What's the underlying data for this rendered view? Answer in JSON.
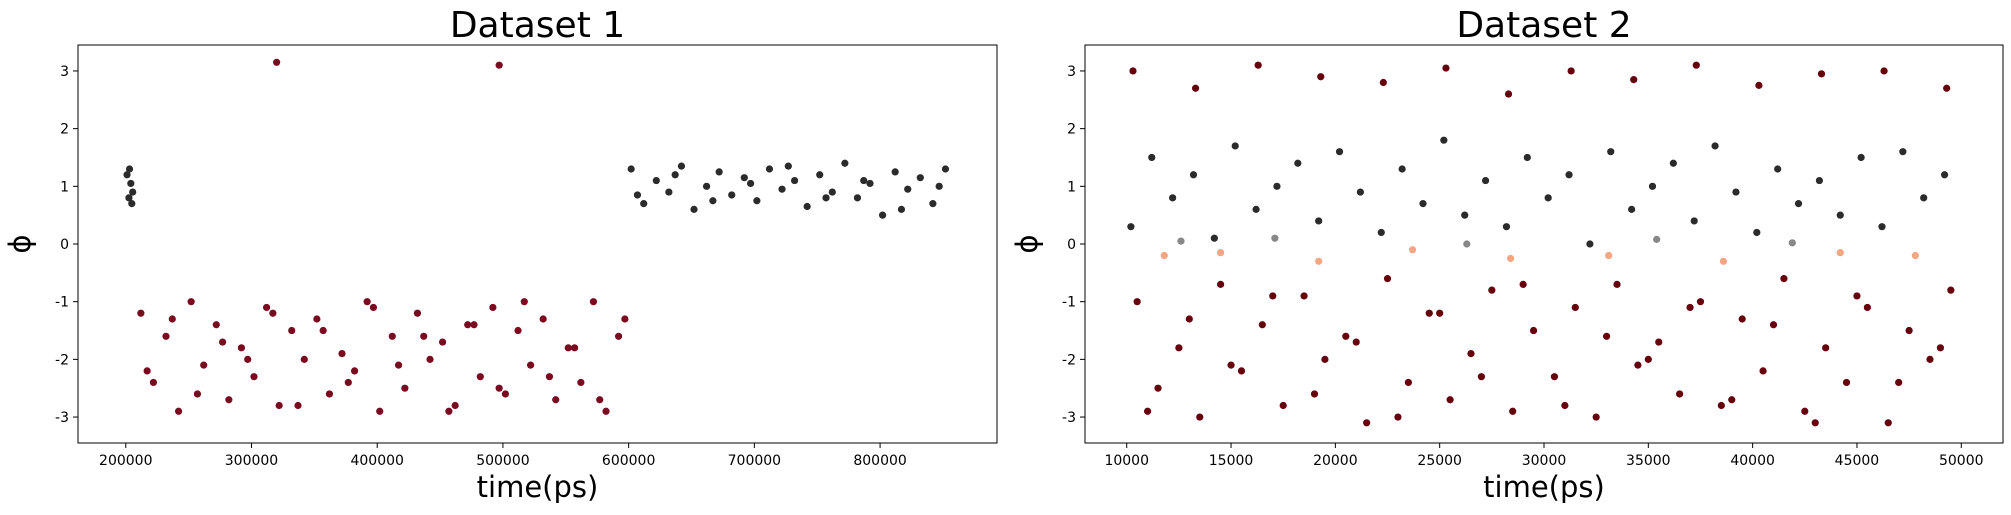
{
  "chart_data": [
    {
      "type": "scatter",
      "title": "Dataset 1",
      "xlabel": "time(ps)",
      "ylabel": "ϕ",
      "xlim": [
        162000,
        893000
      ],
      "ylim": [
        -3.45,
        3.45
      ],
      "xticks": [
        200000,
        300000,
        400000,
        500000,
        600000,
        700000,
        800000
      ],
      "yticks": [
        -3,
        -2,
        -1,
        0,
        1,
        2,
        3
      ],
      "series": [
        {
          "color": "#2b2b2b",
          "x": [
            201000,
            202500,
            204000,
            205500,
            203000,
            204800,
            602000,
            612000,
            622000,
            632000,
            642000,
            652000,
            662000,
            672000,
            682000,
            692000,
            702000,
            712000,
            722000,
            732000,
            742000,
            752000,
            762000,
            772000,
            782000,
            792000,
            802000,
            812000,
            822000,
            832000,
            842000,
            852000,
            607000,
            637000,
            667000,
            697000,
            727000,
            757000,
            787000,
            817000,
            847000
          ],
          "values": [
            1.2,
            0.8,
            1.05,
            0.9,
            1.3,
            0.7,
            1.3,
            0.7,
            1.1,
            0.9,
            1.35,
            0.6,
            1.0,
            1.25,
            0.85,
            1.15,
            0.75,
            1.3,
            0.95,
            1.1,
            0.65,
            1.2,
            0.9,
            1.4,
            0.8,
            1.05,
            0.5,
            1.25,
            0.95,
            1.15,
            0.7,
            1.3,
            0.85,
            1.2,
            0.75,
            1.05,
            1.35,
            0.8,
            1.1,
            0.6,
            1.0
          ]
        },
        {
          "color": "#7a0a1f",
          "x": [
            212000,
            222000,
            232000,
            242000,
            252000,
            262000,
            272000,
            282000,
            292000,
            302000,
            312000,
            322000,
            332000,
            342000,
            352000,
            362000,
            372000,
            382000,
            392000,
            402000,
            412000,
            422000,
            432000,
            442000,
            452000,
            462000,
            472000,
            482000,
            492000,
            502000,
            512000,
            522000,
            532000,
            542000,
            552000,
            562000,
            572000,
            582000,
            592000,
            217000,
            237000,
            257000,
            277000,
            297000,
            317000,
            337000,
            357000,
            377000,
            397000,
            417000,
            437000,
            457000,
            477000,
            497000,
            517000,
            537000,
            557000,
            577000,
            597000,
            320000,
            497000
          ],
          "values": [
            -1.2,
            -2.4,
            -1.6,
            -2.9,
            -1.0,
            -2.1,
            -1.4,
            -2.7,
            -1.8,
            -2.3,
            -1.1,
            -2.8,
            -1.5,
            -2.0,
            -1.3,
            -2.6,
            -1.9,
            -2.2,
            -1.0,
            -2.9,
            -1.6,
            -2.5,
            -1.2,
            -2.0,
            -1.7,
            -2.8,
            -1.4,
            -2.3,
            -1.1,
            -2.6,
            -1.5,
            -2.1,
            -1.3,
            -2.7,
            -1.8,
            -2.4,
            -1.0,
            -2.9,
            -1.6,
            -2.2,
            -1.3,
            -2.6,
            -1.7,
            -2.0,
            -1.2,
            -2.8,
            -1.5,
            -2.4,
            -1.1,
            -2.1,
            -1.6,
            -2.9,
            -1.4,
            -2.5,
            -1.0,
            -2.3,
            -1.8,
            -2.7,
            -1.3,
            3.15,
            3.1
          ]
        }
      ]
    },
    {
      "type": "scatter",
      "title": "Dataset 2",
      "xlabel": "time(ps)",
      "ylabel": "ϕ",
      "xlim": [
        8000,
        52000
      ],
      "ylim": [
        -3.45,
        3.45
      ],
      "xticks": [
        10000,
        15000,
        20000,
        25000,
        30000,
        35000,
        40000,
        45000,
        50000
      ],
      "yticks": [
        -3,
        -2,
        -1,
        0,
        1,
        2,
        3
      ],
      "series": [
        {
          "color": "#2b2b2b",
          "x": [
            10200,
            11200,
            12200,
            13200,
            14200,
            15200,
            16200,
            17200,
            18200,
            19200,
            20200,
            21200,
            22200,
            23200,
            24200,
            25200,
            26200,
            27200,
            28200,
            29200,
            30200,
            31200,
            32200,
            33200,
            34200,
            35200,
            36200,
            37200,
            38200,
            39200,
            40200,
            41200,
            42200,
            43200,
            44200,
            45200,
            46200,
            47200,
            48200,
            49200
          ],
          "values": [
            0.3,
            1.5,
            0.8,
            1.2,
            0.1,
            1.7,
            0.6,
            1.0,
            1.4,
            0.4,
            1.6,
            0.9,
            0.2,
            1.3,
            0.7,
            1.8,
            0.5,
            1.1,
            0.3,
            1.5,
            0.8,
            1.2,
            0.0,
            1.6,
            0.6,
            1.0,
            1.4,
            0.4,
            1.7,
            0.9,
            0.2,
            1.3,
            0.7,
            1.1,
            0.5,
            1.5,
            0.3,
            1.6,
            0.8,
            1.2
          ]
        },
        {
          "color": "#888888",
          "x": [
            12600,
            17100,
            26300,
            35400,
            41900
          ],
          "values": [
            0.05,
            0.1,
            0.0,
            0.08,
            0.02
          ]
        },
        {
          "color": "#f4a582",
          "x": [
            11800,
            14500,
            19200,
            23700,
            28400,
            33100,
            38600,
            44200,
            47800
          ],
          "values": [
            -0.2,
            -0.15,
            -0.3,
            -0.1,
            -0.25,
            -0.2,
            -0.3,
            -0.15,
            -0.2
          ]
        },
        {
          "color": "#67000d",
          "x": [
            10500,
            11500,
            12500,
            13500,
            14500,
            15500,
            16500,
            17500,
            18500,
            19500,
            20500,
            21500,
            22500,
            23500,
            24500,
            25500,
            26500,
            27500,
            28500,
            29500,
            30500,
            31500,
            32500,
            33500,
            34500,
            35500,
            36500,
            37500,
            38500,
            39500,
            40500,
            41500,
            42500,
            43500,
            44500,
            45500,
            46500,
            47500,
            48500,
            49500,
            11000,
            13000,
            15000,
            17000,
            19000,
            21000,
            23000,
            25000,
            27000,
            29000,
            31000,
            33000,
            35000,
            37000,
            39000,
            41000,
            43000,
            45000,
            47000,
            49000,
            10300,
            13300,
            16300,
            19300,
            22300,
            25300,
            28300,
            31300,
            34300,
            37300,
            40300,
            43300,
            46300,
            49300
          ],
          "values": [
            -1.0,
            -2.5,
            -1.8,
            -3.0,
            -0.7,
            -2.2,
            -1.4,
            -2.8,
            -0.9,
            -2.0,
            -1.6,
            -3.1,
            -0.6,
            -2.4,
            -1.2,
            -2.7,
            -1.9,
            -0.8,
            -2.9,
            -1.5,
            -2.3,
            -1.1,
            -3.0,
            -0.7,
            -2.1,
            -1.7,
            -2.6,
            -1.0,
            -2.8,
            -1.3,
            -2.2,
            -0.6,
            -2.9,
            -1.8,
            -2.4,
            -1.1,
            -3.1,
            -1.5,
            -2.0,
            -0.8,
            -2.9,
            -1.3,
            -2.1,
            -0.9,
            -2.6,
            -1.7,
            -3.0,
            -1.2,
            -2.3,
            -0.7,
            -2.8,
            -1.6,
            -2.0,
            -1.1,
            -2.7,
            -1.4,
            -3.1,
            -0.9,
            -2.4,
            -1.8,
            3.0,
            2.7,
            3.1,
            2.9,
            2.8,
            3.05,
            2.6,
            3.0,
            2.85,
            3.1,
            2.75,
            2.95,
            3.0,
            2.7
          ]
        }
      ]
    }
  ]
}
